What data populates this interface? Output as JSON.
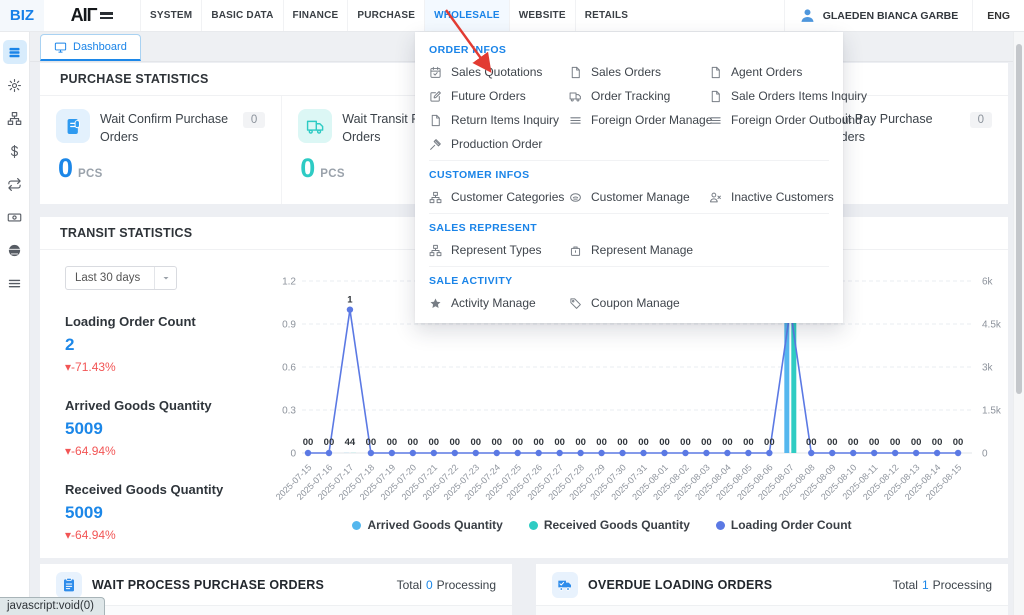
{
  "topbar": {
    "logo_small": "BIZ",
    "logo_main": "AIΓ",
    "menu": [
      {
        "label": "SYSTEM"
      },
      {
        "label": "BASIC DATA"
      },
      {
        "label": "FINANCE"
      },
      {
        "label": "PURCHASE"
      },
      {
        "label": "WHOLESALE",
        "active": true
      },
      {
        "label": "WEBSITE"
      },
      {
        "label": "RETAILS"
      }
    ],
    "user": "GLAEDEN BIANCA GARBE",
    "lang": "ENG"
  },
  "sidebar": {
    "items": [
      {
        "icon": "dashboard-icon",
        "active": true
      },
      {
        "icon": "gear-icon"
      },
      {
        "icon": "sitemap-icon"
      },
      {
        "icon": "dollar-icon"
      },
      {
        "icon": "repeat-icon"
      },
      {
        "icon": "banknote-icon"
      },
      {
        "icon": "globe-icon"
      },
      {
        "icon": "menu-icon"
      }
    ]
  },
  "tabs": {
    "dashboard": "Dashboard"
  },
  "purchase_stats": {
    "title": "PURCHASE STATISTICS",
    "cards": [
      {
        "title": "Wait Confirm Purchase Orders",
        "badge": "0",
        "value": "0",
        "unit": "PCS",
        "color": "blue",
        "icon": "document-icon"
      },
      {
        "title": "Wait Transit Purchase Orders",
        "badge": "0",
        "value": "0",
        "unit": "PCS",
        "color": "teal",
        "icon": "truck-icon"
      },
      {
        "empty": true
      },
      {
        "title": "Wait Pay Purchase Orders",
        "badge": "0",
        "color": "blue",
        "icon": "document-icon"
      }
    ]
  },
  "wholesale_menu": {
    "sections": [
      {
        "title": "ORDER INFOS",
        "items": [
          {
            "label": "Sales Quotations",
            "icon": "calendar-check-icon"
          },
          {
            "label": "Sales Orders",
            "icon": "file-icon"
          },
          {
            "label": "Agent Orders",
            "icon": "file-icon"
          },
          {
            "label": "Future Orders",
            "icon": "edit-icon"
          },
          {
            "label": "Order Tracking",
            "icon": "truck-icon"
          },
          {
            "label": "Sale Orders Items Inquiry",
            "icon": "file-icon"
          },
          {
            "label": "Return Items Inquiry",
            "icon": "file-icon"
          },
          {
            "label": "Foreign Order Manage",
            "icon": "list-icon"
          },
          {
            "label": "Foreign Order Outbound",
            "icon": "list-icon"
          },
          {
            "label": "Production Order",
            "icon": "hammer-icon"
          }
        ]
      },
      {
        "title": "CUSTOMER INFOS",
        "items": [
          {
            "label": "Customer Categories",
            "icon": "sitemap-icon"
          },
          {
            "label": "Customer Manage",
            "icon": "handshake-icon"
          },
          {
            "label": "Inactive Customers",
            "icon": "user-x-icon"
          }
        ]
      },
      {
        "title": "SALES REPRESENT",
        "items": [
          {
            "label": "Represent Types",
            "icon": "sitemap-icon"
          },
          {
            "label": "Represent Manage",
            "icon": "briefcase-icon"
          }
        ]
      },
      {
        "title": "SALE ACTIVITY",
        "items": [
          {
            "label": "Activity Manage",
            "icon": "star-icon"
          },
          {
            "label": "Coupon Manage",
            "icon": "tag-icon"
          }
        ]
      }
    ]
  },
  "transit_stats": {
    "title": "TRANSIT STATISTICS",
    "period": "Last 30 days",
    "metrics": [
      {
        "label": "Loading Order Count",
        "value": "2",
        "delta": "▾-71.43%"
      },
      {
        "label": "Arrived Goods Quantity",
        "value": "5009",
        "delta": "▾-64.94%"
      },
      {
        "label": "Received Goods Quantity",
        "value": "5009",
        "delta": "▾-64.94%"
      }
    ]
  },
  "chart_data": {
    "type": "combo",
    "x": [
      "2025-07-15",
      "2025-07-16",
      "2025-07-17",
      "2025-07-18",
      "2025-07-19",
      "2025-07-20",
      "2025-07-21",
      "2025-07-22",
      "2025-07-23",
      "2025-07-24",
      "2025-07-25",
      "2025-07-26",
      "2025-07-27",
      "2025-07-28",
      "2025-07-29",
      "2025-07-30",
      "2025-07-31",
      "2025-08-01",
      "2025-08-02",
      "2025-08-03",
      "2025-08-04",
      "2025-08-05",
      "2025-08-06",
      "2025-08-07",
      "2025-08-08",
      "2025-08-09",
      "2025-08-10",
      "2025-08-11",
      "2025-08-12",
      "2025-08-13",
      "2025-08-14",
      "2025-08-15"
    ],
    "series": [
      {
        "name": "Arrived Goods Quantity",
        "type": "bar",
        "axis": "right",
        "color": "#55b7ee",
        "values": [
          0,
          0,
          4,
          0,
          0,
          0,
          0,
          0,
          0,
          0,
          0,
          0,
          0,
          0,
          0,
          0,
          0,
          0,
          0,
          0,
          0,
          0,
          0,
          5005,
          0,
          0,
          0,
          0,
          0,
          0,
          0,
          0
        ]
      },
      {
        "name": "Received Goods Quantity",
        "type": "bar",
        "axis": "right",
        "color": "#2fccc3",
        "values": [
          0,
          0,
          4,
          0,
          0,
          0,
          0,
          0,
          0,
          0,
          0,
          0,
          0,
          0,
          0,
          0,
          0,
          0,
          0,
          0,
          0,
          0,
          0,
          5005,
          0,
          0,
          0,
          0,
          0,
          0,
          0,
          0
        ]
      },
      {
        "name": "Loading Order Count",
        "type": "line",
        "axis": "left",
        "color": "#5b79e4",
        "values": [
          0,
          0,
          1,
          0,
          0,
          0,
          0,
          0,
          0,
          0,
          0,
          0,
          0,
          0,
          0,
          0,
          0,
          0,
          0,
          0,
          0,
          0,
          0,
          1,
          0,
          0,
          0,
          0,
          0,
          0,
          0,
          0
        ]
      }
    ],
    "left_axis": {
      "max": 1.2,
      "ticks": [
        0,
        0.3,
        0.6,
        0.9,
        1.2
      ]
    },
    "right_axis": {
      "max": 6000,
      "tick_labels": [
        "0",
        "1.5k",
        "3k",
        "4.5k",
        "6k"
      ]
    },
    "grid": "dashed",
    "legend_position": "bottom"
  },
  "bottom_panels": [
    {
      "title": "WAIT PROCESS PURCHASE ORDERS",
      "total_label": "Total",
      "total_value": "0",
      "total_suffix": "Processing",
      "icon": "clipboard-icon"
    },
    {
      "title": "OVERDUE LOADING ORDERS",
      "total_label": "Total",
      "total_value": "1",
      "total_suffix": "Processing",
      "icon": "truck-check-icon"
    }
  ],
  "status_bar": {
    "text": "javascript:void(0)"
  },
  "colors": {
    "accent_blue": "#1c87e8",
    "teal": "#2ecbc4",
    "danger_red": "#f25555",
    "arrow_red": "#e23b32"
  }
}
